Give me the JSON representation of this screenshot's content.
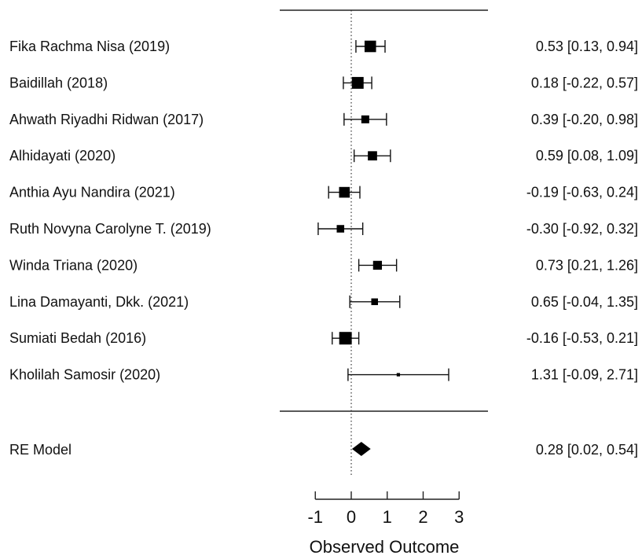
{
  "chart_data": {
    "type": "forest",
    "xlabel": "Observed Outcome",
    "xlim": [
      -1,
      3
    ],
    "ticks": [
      -1,
      0,
      1,
      2,
      3
    ],
    "reference_line": 0,
    "studies": [
      {
        "label": "Fika Rachma Nisa (2019)",
        "estimate": 0.53,
        "lower": 0.13,
        "upper": 0.94,
        "ci_text": "0.53 [0.13, 0.94]"
      },
      {
        "label": "Baidillah (2018)",
        "estimate": 0.18,
        "lower": -0.22,
        "upper": 0.57,
        "ci_text": "0.18 [-0.22, 0.57]"
      },
      {
        "label": "Ahwath Riyadhi Ridwan (2017)",
        "estimate": 0.39,
        "lower": -0.2,
        "upper": 0.98,
        "ci_text": "0.39 [-0.20, 0.98]"
      },
      {
        "label": "Alhidayati (2020)",
        "estimate": 0.59,
        "lower": 0.08,
        "upper": 1.09,
        "ci_text": "0.59 [0.08, 1.09]"
      },
      {
        "label": "Anthia Ayu Nandira (2021)",
        "estimate": -0.19,
        "lower": -0.63,
        "upper": 0.24,
        "ci_text": "-0.19 [-0.63, 0.24]"
      },
      {
        "label": "Ruth Novyna Carolyne T. (2019)",
        "estimate": -0.3,
        "lower": -0.92,
        "upper": 0.32,
        "ci_text": "-0.30 [-0.92, 0.32]"
      },
      {
        "label": "Winda Triana (2020)",
        "estimate": 0.73,
        "lower": 0.21,
        "upper": 1.26,
        "ci_text": "0.73 [0.21, 1.26]"
      },
      {
        "label": "Lina Damayanti, Dkk. (2021)",
        "estimate": 0.65,
        "lower": -0.04,
        "upper": 1.35,
        "ci_text": "0.65 [-0.04, 1.35]"
      },
      {
        "label": "Sumiati Bedah (2016)",
        "estimate": -0.16,
        "lower": -0.53,
        "upper": 0.21,
        "ci_text": "-0.16 [-0.53, 0.21]"
      },
      {
        "label": "Kholilah Samosir (2020)",
        "estimate": 1.31,
        "lower": -0.09,
        "upper": 2.71,
        "ci_text": "1.31 [-0.09, 2.71]"
      }
    ],
    "summary": {
      "label": "RE Model",
      "estimate": 0.28,
      "lower": 0.02,
      "upper": 0.54,
      "ci_text": "0.28 [0.02, 0.54]"
    }
  }
}
